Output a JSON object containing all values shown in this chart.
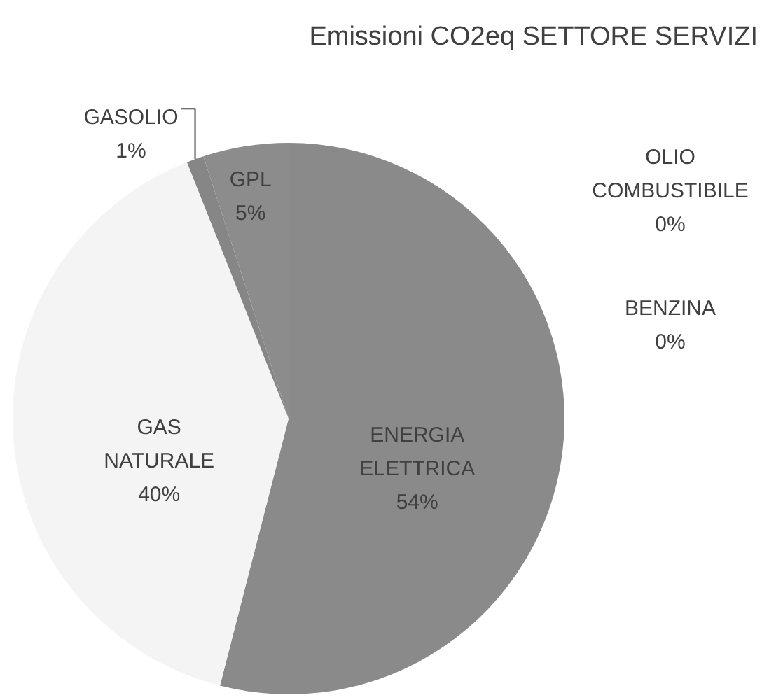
{
  "chart_data": {
    "type": "pie",
    "title": "Emissioni CO2eq SETTORE SERVIZI",
    "categories": [
      "ENERGIA ELETTRICA",
      "GAS NATURALE",
      "GASOLIO",
      "GPL",
      "OLIO COMBUSTIBILE",
      "BENZINA"
    ],
    "values": [
      54,
      40,
      1,
      5,
      0,
      0
    ],
    "value_labels": [
      "54%",
      "40%",
      "1%",
      "5%",
      "0%",
      "0%"
    ],
    "colors": [
      "#8a8a8a",
      "#f4f4f4",
      "#868686",
      "#8c8c8c",
      "#6e6e6e",
      "#5a5a5a"
    ]
  }
}
